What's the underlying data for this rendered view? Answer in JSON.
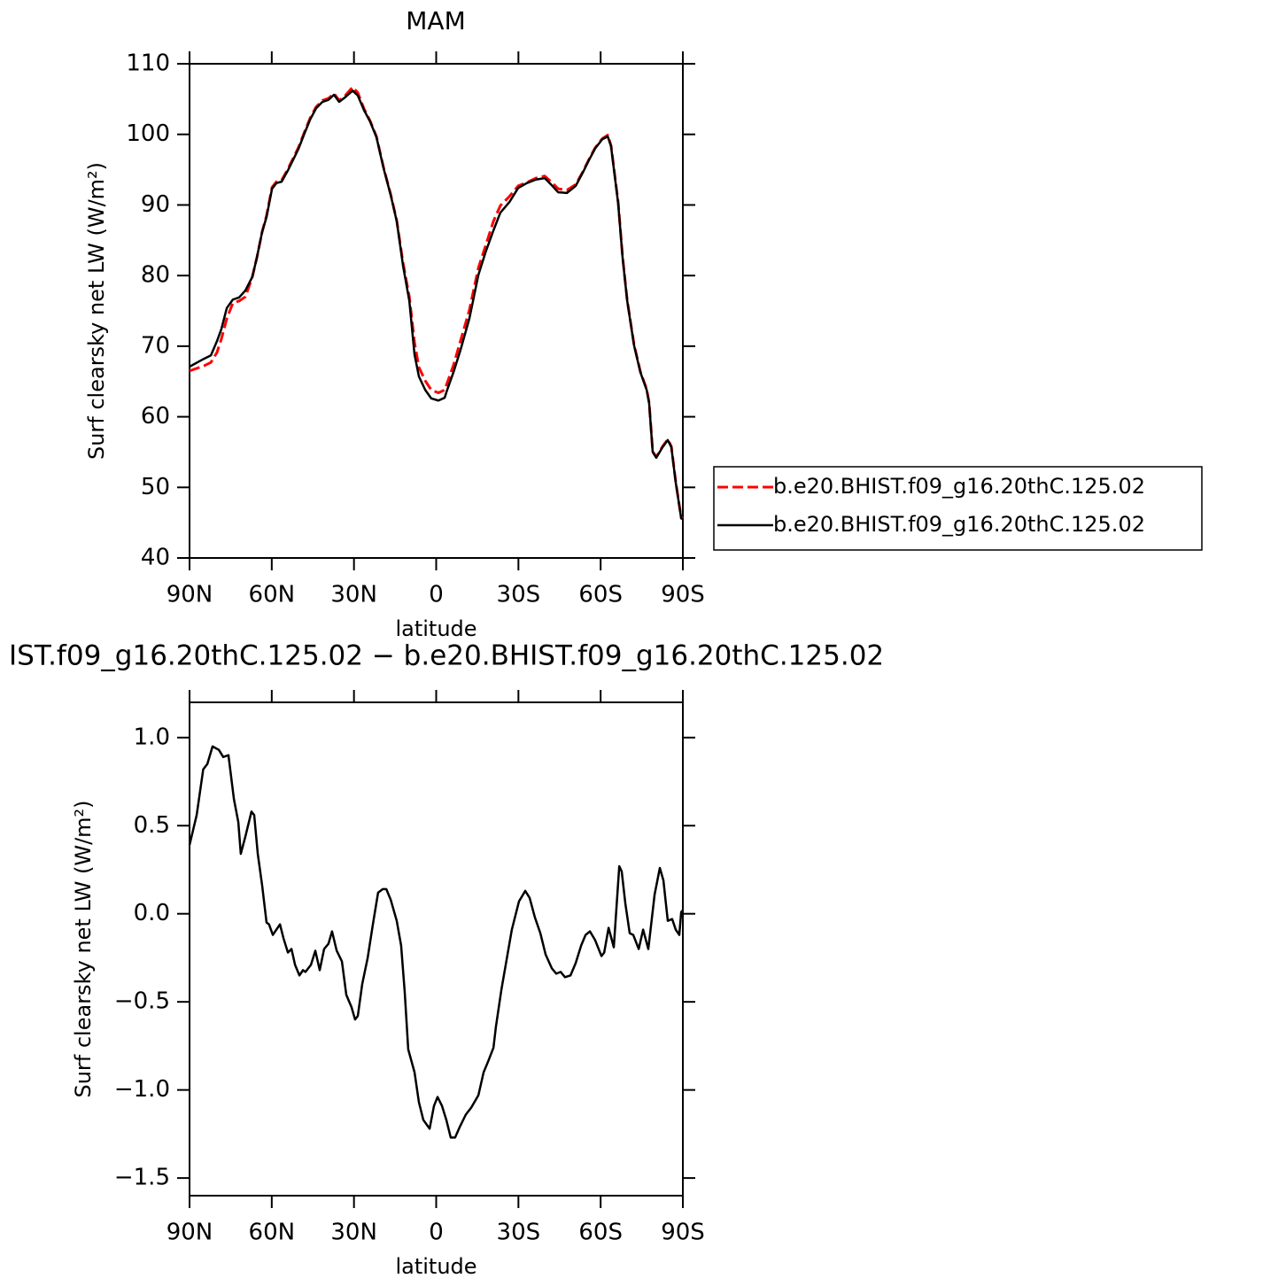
{
  "chart_data": [
    {
      "type": "line",
      "title": "MAM",
      "x_label": "latitude",
      "y_label": "Surf clearsky net LW (W/m²)",
      "x": [
        90,
        84.8,
        82.2,
        80,
        78.4,
        76.4,
        74.2,
        71.9,
        69.6,
        67.1,
        65.4,
        63.5,
        61.9,
        59.9,
        58.3,
        56.4,
        54.1,
        52.2,
        50.2,
        48,
        46,
        43.8,
        41.5,
        39.3,
        37.3,
        35.4,
        33.4,
        30.5,
        28.6,
        26.3,
        24.1,
        21.8,
        19.2,
        16.6,
        14.4,
        12.1,
        9.8,
        7.9,
        6.3,
        4,
        1.8,
        -0.8,
        -3.1,
        -4,
        -6.3,
        -8.9,
        -12.1,
        -15.4,
        -18,
        -20.9,
        -23.4,
        -26.7,
        -29.9,
        -33.1,
        -36.4,
        -39.6,
        -41.9,
        -44.5,
        -47.7,
        -50.9,
        -53.5,
        -55.8,
        -58,
        -60.6,
        -62.6,
        -63.8,
        -66.4,
        -68,
        -69.7,
        -72.2,
        -74.5,
        -76.8,
        -77.7,
        -79,
        -80.3,
        -82.6,
        -84.5,
        -85.8,
        -87.4,
        -89.4,
        -90
      ],
      "series": [
        {
          "name": "b.e20.BHIST.f09_g16.20thC.125.02",
          "color": "#ff0000",
          "dash": true,
          "values": [
            66.5,
            67.2,
            67.7,
            69.1,
            71,
            73.9,
            76.1,
            76.4,
            77,
            79.8,
            82.6,
            86.2,
            88.5,
            92.5,
            93.3,
            93.5,
            95.1,
            96.6,
            98.2,
            100.4,
            102.3,
            103.9,
            104.8,
            105.1,
            105.8,
            104.8,
            105.4,
            106.7,
            105.9,
            103.6,
            101.9,
            99.7,
            95.3,
            91.5,
            87.8,
            81.8,
            77,
            70.5,
            67,
            65.1,
            63.8,
            63.4,
            63.8,
            64.8,
            67.3,
            70.8,
            75.1,
            81.1,
            84.2,
            87.7,
            89.9,
            91.2,
            92.7,
            93.2,
            93.8,
            94.1,
            93.3,
            92.3,
            92.1,
            92.9,
            94.7,
            96.5,
            98.1,
            99.4,
            99.9,
            98.4,
            90.4,
            82.7,
            76.5,
            70.2,
            66.4,
            63.9,
            62,
            55.1,
            54.3,
            55.8,
            56.8,
            55.8,
            50.8,
            45.7,
            45.6
          ]
        },
        {
          "name": "b.e20.BHIST.f09_g16.20thC.125.02",
          "color": "#000000",
          "dash": false,
          "values": [
            67.1,
            68.2,
            68.7,
            70.7,
            72.4,
            75.4,
            76.6,
            76.9,
            77.9,
            79.8,
            82.6,
            86.2,
            88.3,
            92.3,
            93.1,
            93.3,
            94.9,
            96.4,
            98,
            100.2,
            102.1,
            103.7,
            104.6,
            104.9,
            105.6,
            104.6,
            105.2,
            106.2,
            105.5,
            103.4,
            101.8,
            99.6,
            95.2,
            91.4,
            87.7,
            81.4,
            76.4,
            68.8,
            65.7,
            63.8,
            62.6,
            62.3,
            62.7,
            63.8,
            66.3,
            69.5,
            73.9,
            80.1,
            83.3,
            86.4,
            88.9,
            90.4,
            92.4,
            93.1,
            93.6,
            93.8,
            92.9,
            91.8,
            91.7,
            92.7,
            94.6,
            96.4,
            98,
            99.3,
            99.7,
            98.3,
            90.2,
            82.6,
            76.4,
            70.1,
            66.3,
            63.8,
            61.9,
            55,
            54.2,
            55.7,
            56.7,
            55.7,
            50.7,
            45.6,
            45.5
          ]
        }
      ],
      "xlim": [
        90,
        -90
      ],
      "xticks": [
        {
          "value": 90,
          "label": "90N"
        },
        {
          "value": 60,
          "label": "60N"
        },
        {
          "value": 30,
          "label": "30N"
        },
        0,
        {
          "value": -30,
          "label": "30S"
        },
        {
          "value": -60,
          "label": "60S"
        },
        {
          "value": -90,
          "label": "90S"
        }
      ],
      "ylim": [
        40,
        110
      ],
      "yticks": [
        40,
        50,
        60,
        70,
        80,
        90,
        100,
        110
      ]
    },
    {
      "type": "line",
      "title": "IST.f09_g16.20thC.125.02 − b.e20.BHIST.f09_g16.20thC.125.02",
      "x_label": "latitude",
      "y_label": "Surf clearsky net LW (W/m²)",
      "x": [
        90,
        87.4,
        85,
        83.5,
        81.6,
        79.3,
        77.7,
        75.8,
        73.8,
        72.2,
        71.3,
        69.6,
        67.4,
        66.4,
        65.1,
        63.5,
        61.9,
        61,
        59.6,
        57,
        55.7,
        54.1,
        52.8,
        51.5,
        49.9,
        48.6,
        47.7,
        45.7,
        44.1,
        42.5,
        40.9,
        39.3,
        38,
        36.3,
        34.4,
        32.8,
        30.9,
        29.6,
        28.6,
        27,
        25,
        23.1,
        21.2,
        19.5,
        18.2,
        16.6,
        14.4,
        12.8,
        11.5,
        10.2,
        7.9,
        6.3,
        4.7,
        2.4,
        0.8,
        -0.5,
        -2.1,
        -3.7,
        -5.3,
        -6.9,
        -8.6,
        -10.8,
        -12.8,
        -15.4,
        -17.3,
        -18.9,
        -20.9,
        -21.8,
        -23.8,
        -25.7,
        -27.6,
        -30.2,
        -32.5,
        -34.1,
        -36,
        -38,
        -39.9,
        -42.2,
        -43.8,
        -45.4,
        -47,
        -49,
        -50.9,
        -52.9,
        -54.5,
        -56.1,
        -58,
        -60.3,
        -61.3,
        -62.9,
        -64.8,
        -66.8,
        -67.7,
        -69,
        -70.6,
        -71.9,
        -73.9,
        -75.5,
        -77.4,
        -79.7,
        -81.6,
        -82.9,
        -84.5,
        -86.1,
        -87.4,
        -88.7,
        -89.4,
        -90
      ],
      "values": [
        0.39,
        0.56,
        0.82,
        0.85,
        0.95,
        0.93,
        0.89,
        0.9,
        0.65,
        0.52,
        0.34,
        0.44,
        0.58,
        0.56,
        0.34,
        0.16,
        -0.05,
        -0.06,
        -0.12,
        -0.06,
        -0.14,
        -0.22,
        -0.2,
        -0.29,
        -0.35,
        -0.32,
        -0.33,
        -0.29,
        -0.21,
        -0.32,
        -0.2,
        -0.17,
        -0.1,
        -0.21,
        -0.27,
        -0.46,
        -0.53,
        -0.6,
        -0.58,
        -0.4,
        -0.25,
        -0.06,
        0.12,
        0.14,
        0.14,
        0.08,
        -0.04,
        -0.18,
        -0.44,
        -0.77,
        -0.9,
        -1.07,
        -1.17,
        -1.22,
        -1.09,
        -1.04,
        -1.09,
        -1.17,
        -1.27,
        -1.27,
        -1.21,
        -1.14,
        -1.1,
        -1.03,
        -0.9,
        -0.84,
        -0.76,
        -0.64,
        -0.43,
        -0.26,
        -0.09,
        0.07,
        0.13,
        0.09,
        -0.02,
        -0.11,
        -0.23,
        -0.31,
        -0.34,
        -0.33,
        -0.36,
        -0.35,
        -0.28,
        -0.18,
        -0.12,
        -0.1,
        -0.15,
        -0.24,
        -0.22,
        -0.08,
        -0.19,
        0.27,
        0.24,
        0.06,
        -0.11,
        -0.12,
        -0.2,
        -0.09,
        -0.2,
        0.11,
        0.26,
        0.19,
        -0.04,
        -0.03,
        -0.09,
        -0.12,
        0.01,
        0.02
      ],
      "color": "#000000",
      "xlim": [
        90,
        -90
      ],
      "xticks": [
        {
          "value": 90,
          "label": "90N"
        },
        {
          "value": 60,
          "label": "60N"
        },
        {
          "value": 30,
          "label": "30N"
        },
        0,
        {
          "value": -30,
          "label": "30S"
        },
        {
          "value": -60,
          "label": "60S"
        },
        {
          "value": -90,
          "label": "90S"
        }
      ],
      "ylim": [
        -1.6,
        1.2
      ],
      "yticks": [
        {
          "value": -1.5,
          "label": "−1.5"
        },
        {
          "value": -1,
          "label": "−1.0"
        },
        {
          "value": -0.5,
          "label": "−0.5"
        },
        {
          "value": 0,
          "label": "0.0"
        },
        {
          "value": 0.5,
          "label": "0.5"
        },
        {
          "value": 1,
          "label": "1.0"
        }
      ]
    }
  ]
}
